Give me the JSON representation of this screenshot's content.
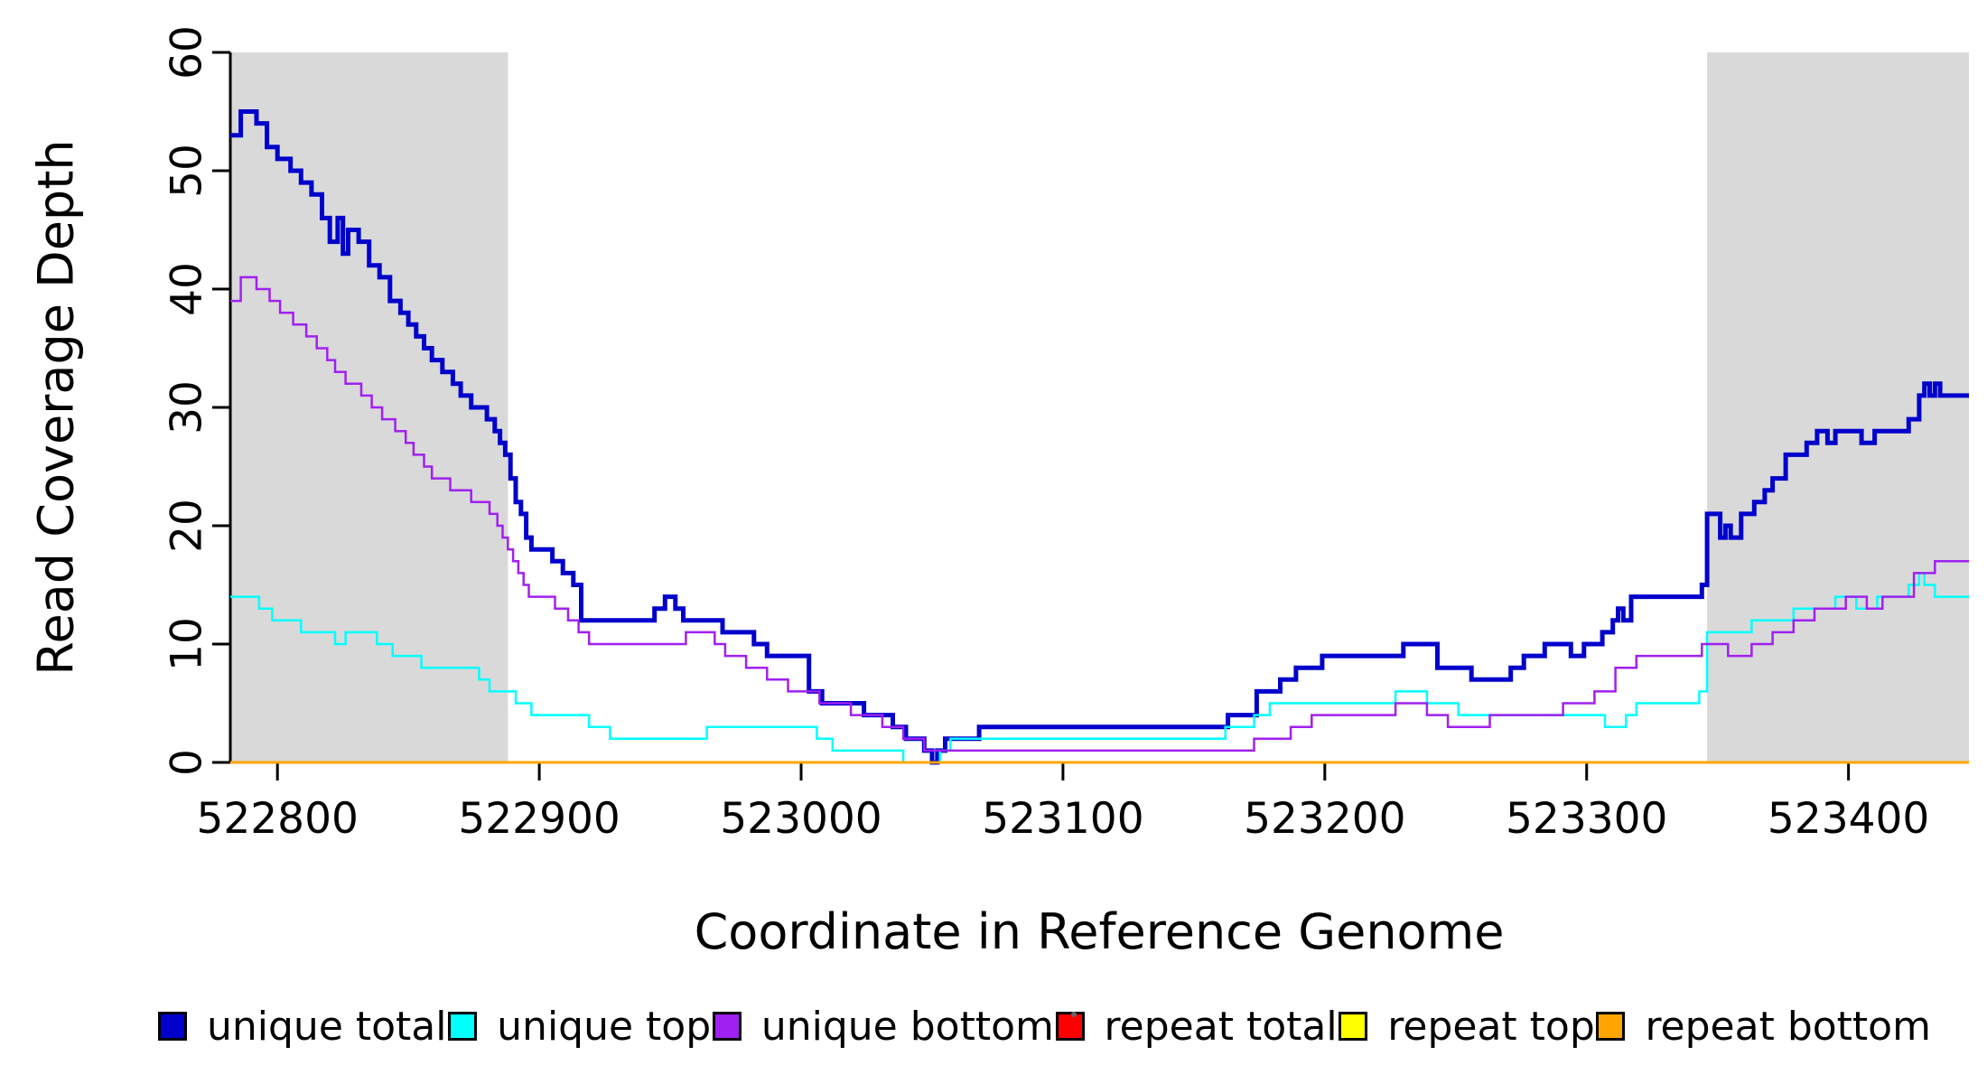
{
  "chart_data": {
    "type": "line",
    "subtype": "step",
    "title": "",
    "xlabel": "Coordinate in Reference Genome",
    "ylabel": "Read Coverage Depth",
    "xlim": [
      522782,
      523446
    ],
    "ylim": [
      0,
      60
    ],
    "x_ticks": [
      522800,
      522900,
      523000,
      523100,
      523200,
      523300,
      523400
    ],
    "y_ticks": [
      0,
      10,
      20,
      30,
      40,
      50,
      60
    ],
    "grid": false,
    "legend_position": "bottom",
    "shaded_regions": [
      {
        "x0": 522782,
        "x1": 522888,
        "color": "#d9d9d9"
      },
      {
        "x0": 523346,
        "x1": 523446,
        "color": "#d9d9d9"
      }
    ],
    "series": [
      {
        "name": "unique total",
        "color": "#0000cc",
        "width": 5,
        "points": [
          [
            522782,
            53
          ],
          [
            522786,
            55
          ],
          [
            522792,
            54
          ],
          [
            522796,
            52
          ],
          [
            522800,
            51
          ],
          [
            522805,
            50
          ],
          [
            522809,
            49
          ],
          [
            522813,
            48
          ],
          [
            522817,
            46
          ],
          [
            522820,
            44
          ],
          [
            522823,
            46
          ],
          [
            522825,
            43
          ],
          [
            522827,
            45
          ],
          [
            522831,
            44
          ],
          [
            522835,
            42
          ],
          [
            522839,
            41
          ],
          [
            522843,
            39
          ],
          [
            522847,
            38
          ],
          [
            522850,
            37
          ],
          [
            522853,
            36
          ],
          [
            522856,
            35
          ],
          [
            522859,
            34
          ],
          [
            522863,
            33
          ],
          [
            522867,
            32
          ],
          [
            522870,
            31
          ],
          [
            522874,
            30
          ],
          [
            522880,
            29
          ],
          [
            522883,
            28
          ],
          [
            522885,
            27
          ],
          [
            522887,
            26
          ],
          [
            522889,
            24
          ],
          [
            522891,
            22
          ],
          [
            522893,
            21
          ],
          [
            522895,
            19
          ],
          [
            522897,
            18
          ],
          [
            522905,
            17
          ],
          [
            522909,
            16
          ],
          [
            522913,
            15
          ],
          [
            522916,
            12
          ],
          [
            522944,
            13
          ],
          [
            522948,
            14
          ],
          [
            522952,
            13
          ],
          [
            522955,
            12
          ],
          [
            522970,
            11
          ],
          [
            522982,
            10
          ],
          [
            522987,
            9
          ],
          [
            523003,
            6
          ],
          [
            523008,
            5
          ],
          [
            523024,
            4
          ],
          [
            523035,
            3
          ],
          [
            523040,
            2
          ],
          [
            523047,
            1
          ],
          [
            523050,
            0
          ],
          [
            523052,
            1
          ],
          [
            523055,
            2
          ],
          [
            523068,
            3
          ],
          [
            523163,
            4
          ],
          [
            523174,
            6
          ],
          [
            523183,
            7
          ],
          [
            523189,
            8
          ],
          [
            523199,
            9
          ],
          [
            523230,
            10
          ],
          [
            523243,
            8
          ],
          [
            523256,
            7
          ],
          [
            523271,
            8
          ],
          [
            523276,
            9
          ],
          [
            523284,
            10
          ],
          [
            523294,
            9
          ],
          [
            523299,
            10
          ],
          [
            523306,
            11
          ],
          [
            523310,
            12
          ],
          [
            523312,
            13
          ],
          [
            523314,
            12
          ],
          [
            523317,
            14
          ],
          [
            523344,
            15
          ],
          [
            523346,
            21
          ],
          [
            523351,
            19
          ],
          [
            523353,
            20
          ],
          [
            523355,
            19
          ],
          [
            523359,
            21
          ],
          [
            523364,
            22
          ],
          [
            523368,
            23
          ],
          [
            523371,
            24
          ],
          [
            523376,
            26
          ],
          [
            523384,
            27
          ],
          [
            523388,
            28
          ],
          [
            523392,
            27
          ],
          [
            523395,
            28
          ],
          [
            523405,
            27
          ],
          [
            523410,
            28
          ],
          [
            523423,
            29
          ],
          [
            523427,
            31
          ],
          [
            523429,
            32
          ],
          [
            523431,
            31
          ],
          [
            523433,
            32
          ],
          [
            523435,
            31
          ]
        ]
      },
      {
        "name": "unique top",
        "color": "#00ffff",
        "width": 2.5,
        "points": [
          [
            522782,
            14
          ],
          [
            522793,
            13
          ],
          [
            522798,
            12
          ],
          [
            522809,
            11
          ],
          [
            522822,
            10
          ],
          [
            522826,
            11
          ],
          [
            522838,
            10
          ],
          [
            522844,
            9
          ],
          [
            522855,
            8
          ],
          [
            522877,
            7
          ],
          [
            522881,
            6
          ],
          [
            522891,
            5
          ],
          [
            522897,
            4
          ],
          [
            522919,
            3
          ],
          [
            522927,
            2
          ],
          [
            522964,
            3
          ],
          [
            523006,
            2
          ],
          [
            523012,
            1
          ],
          [
            523039,
            0
          ],
          [
            523053,
            1
          ],
          [
            523057,
            2
          ],
          [
            523162,
            3
          ],
          [
            523173,
            4
          ],
          [
            523179,
            5
          ],
          [
            523227,
            6
          ],
          [
            523239,
            5
          ],
          [
            523251,
            4
          ],
          [
            523307,
            3
          ],
          [
            523315,
            4
          ],
          [
            523319,
            5
          ],
          [
            523343,
            6
          ],
          [
            523346,
            11
          ],
          [
            523363,
            12
          ],
          [
            523379,
            13
          ],
          [
            523395,
            14
          ],
          [
            523403,
            13
          ],
          [
            523411,
            14
          ],
          [
            523423,
            15
          ],
          [
            523427,
            16
          ],
          [
            523429,
            15
          ],
          [
            523433,
            14
          ]
        ]
      },
      {
        "name": "unique bottom",
        "color": "#a020f0",
        "width": 2.5,
        "points": [
          [
            522782,
            39
          ],
          [
            522786,
            41
          ],
          [
            522792,
            40
          ],
          [
            522797,
            39
          ],
          [
            522801,
            38
          ],
          [
            522806,
            37
          ],
          [
            522811,
            36
          ],
          [
            522815,
            35
          ],
          [
            522819,
            34
          ],
          [
            522822,
            33
          ],
          [
            522826,
            32
          ],
          [
            522832,
            31
          ],
          [
            522836,
            30
          ],
          [
            522840,
            29
          ],
          [
            522845,
            28
          ],
          [
            522849,
            27
          ],
          [
            522852,
            26
          ],
          [
            522856,
            25
          ],
          [
            522859,
            24
          ],
          [
            522866,
            23
          ],
          [
            522874,
            22
          ],
          [
            522881,
            21
          ],
          [
            522884,
            20
          ],
          [
            522886,
            19
          ],
          [
            522888,
            18
          ],
          [
            522890,
            17
          ],
          [
            522892,
            16
          ],
          [
            522894,
            15
          ],
          [
            522896,
            14
          ],
          [
            522906,
            13
          ],
          [
            522911,
            12
          ],
          [
            522915,
            11
          ],
          [
            522919,
            10
          ],
          [
            522956,
            11
          ],
          [
            522967,
            10
          ],
          [
            522971,
            9
          ],
          [
            522979,
            8
          ],
          [
            522987,
            7
          ],
          [
            522995,
            6
          ],
          [
            523007,
            5
          ],
          [
            523019,
            4
          ],
          [
            523031,
            3
          ],
          [
            523039,
            2
          ],
          [
            523047,
            1
          ],
          [
            523173,
            2
          ],
          [
            523187,
            3
          ],
          [
            523195,
            4
          ],
          [
            523227,
            5
          ],
          [
            523239,
            4
          ],
          [
            523247,
            3
          ],
          [
            523263,
            4
          ],
          [
            523291,
            5
          ],
          [
            523303,
            6
          ],
          [
            523311,
            8
          ],
          [
            523319,
            9
          ],
          [
            523344,
            10
          ],
          [
            523354,
            9
          ],
          [
            523363,
            10
          ],
          [
            523371,
            11
          ],
          [
            523379,
            12
          ],
          [
            523387,
            13
          ],
          [
            523399,
            14
          ],
          [
            523407,
            13
          ],
          [
            523413,
            14
          ],
          [
            523425,
            16
          ],
          [
            523433,
            17
          ]
        ]
      },
      {
        "name": "repeat total",
        "color": "#ff0000",
        "width": 2.5,
        "points": [
          [
            522782,
            0
          ],
          [
            523446,
            0
          ]
        ]
      },
      {
        "name": "repeat top",
        "color": "#ffff00",
        "width": 2.5,
        "points": [
          [
            522782,
            0
          ],
          [
            523446,
            0
          ]
        ]
      },
      {
        "name": "repeat bottom",
        "color": "#ffa500",
        "width": 3,
        "points": [
          [
            522782,
            0
          ],
          [
            523446,
            0
          ]
        ]
      }
    ]
  }
}
